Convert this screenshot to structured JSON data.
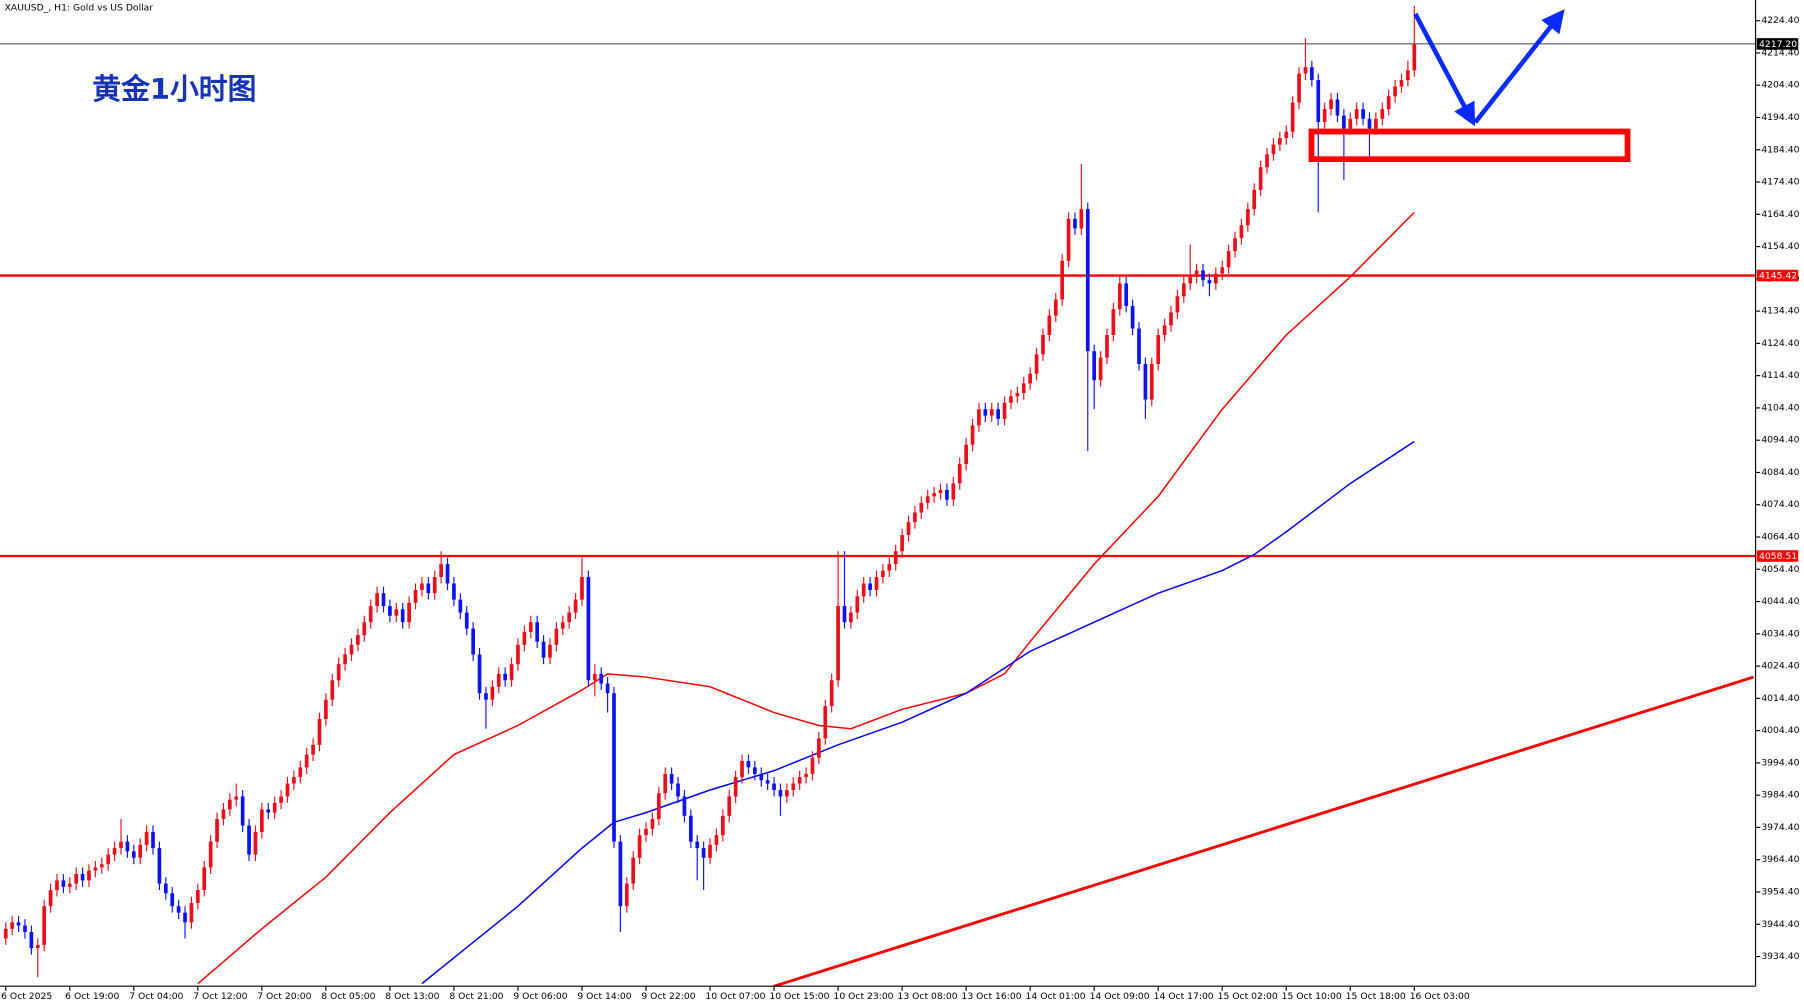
{
  "chart_data": {
    "type": "candlestick",
    "header": "XAUUSD_, H1:  Gold vs US Dollar",
    "annotation": "黄金1小时图",
    "up_color": "#e8101a",
    "down_color": "#0a14f0",
    "xlim": [
      -0.9,
      273.3
    ],
    "ylim": [
      3925.2,
      4230.8
    ],
    "xticks": [
      {
        "value": 0,
        "label": "6 Oct 2025"
      },
      {
        "value": 10,
        "label": "6 Oct 19:00"
      },
      {
        "value": 20,
        "label": "7 Oct 04:00"
      },
      {
        "value": 30,
        "label": "7 Oct 12:00"
      },
      {
        "value": 40,
        "label": "7 Oct 20:00"
      },
      {
        "value": 50,
        "label": "8 Oct 05:00"
      },
      {
        "value": 60,
        "label": "8 Oct 13:00"
      },
      {
        "value": 70,
        "label": "8 Oct 21:00"
      },
      {
        "value": 80,
        "label": "9 Oct 06:00"
      },
      {
        "value": 90,
        "label": "9 Oct 14:00"
      },
      {
        "value": 100,
        "label": "9 Oct 22:00"
      },
      {
        "value": 110,
        "label": "10 Oct 07:00"
      },
      {
        "value": 120,
        "label": "10 Oct 15:00"
      },
      {
        "value": 130,
        "label": "10 Oct 23:00"
      },
      {
        "value": 140,
        "label": "13 Oct 08:00"
      },
      {
        "value": 150,
        "label": "13 Oct 16:00"
      },
      {
        "value": 160,
        "label": "14 Oct 01:00"
      },
      {
        "value": 170,
        "label": "14 Oct 09:00"
      },
      {
        "value": 180,
        "label": "14 Oct 17:00"
      },
      {
        "value": 190,
        "label": "15 Oct 02:00"
      },
      {
        "value": 200,
        "label": "15 Oct 10:00"
      },
      {
        "value": 210,
        "label": "15 Oct 18:00"
      },
      {
        "value": 220,
        "label": "16 Oct 03:00"
      }
    ],
    "yticks": [
      {
        "value": 4224.4,
        "label": "4224.40"
      },
      {
        "value": 4214.4,
        "label": "4214.40"
      },
      {
        "value": 4204.4,
        "label": "4204.40"
      },
      {
        "value": 4194.4,
        "label": "4194.40"
      },
      {
        "value": 4184.4,
        "label": "4184.40"
      },
      {
        "value": 4174.4,
        "label": "4174.40"
      },
      {
        "value": 4164.4,
        "label": "4164.40"
      },
      {
        "value": 4154.4,
        "label": "4154.40"
      },
      {
        "value": 4144.4,
        "label": "4144.40"
      },
      {
        "value": 4134.4,
        "label": "4134.40"
      },
      {
        "value": 4124.4,
        "label": "4124.40"
      },
      {
        "value": 4114.4,
        "label": "4114.40"
      },
      {
        "value": 4104.4,
        "label": "4104.40"
      },
      {
        "value": 4094.4,
        "label": "4094.40"
      },
      {
        "value": 4084.4,
        "label": "4084.40"
      },
      {
        "value": 4074.4,
        "label": "4074.40"
      },
      {
        "value": 4064.4,
        "label": "4064.40"
      },
      {
        "value": 4054.4,
        "label": "4054.40"
      },
      {
        "value": 4044.4,
        "label": "4044.40"
      },
      {
        "value": 4034.4,
        "label": "4034.40"
      },
      {
        "value": 4024.4,
        "label": "4024.40"
      },
      {
        "value": 4014.4,
        "label": "4014.40"
      },
      {
        "value": 4004.4,
        "label": "4004.40"
      },
      {
        "value": 3994.4,
        "label": "3994.40"
      },
      {
        "value": 3984.4,
        "label": "3984.40"
      },
      {
        "value": 3974.4,
        "label": "3974.40"
      },
      {
        "value": 3964.4,
        "label": "3964.40"
      },
      {
        "value": 3954.4,
        "label": "3954.40"
      },
      {
        "value": 3944.4,
        "label": "3944.40"
      },
      {
        "value": 3934.4,
        "label": "3934.40"
      }
    ],
    "levels": [
      {
        "value": 4217.2,
        "label": "4217.20",
        "color": "#000000"
      },
      {
        "value": 4145.42,
        "label": "4145.42",
        "color": "#ff0000"
      },
      {
        "value": 4058.51,
        "label": "4058.51",
        "color": "#ff0000"
      }
    ],
    "open": [
      3940,
      3943,
      3945,
      3944,
      3942,
      3937,
      3938,
      3950,
      3955,
      3958,
      3956,
      3957,
      3960,
      3958,
      3961,
      3962,
      3963,
      3966,
      3968,
      3970,
      3967,
      3965,
      3969,
      3973,
      3968,
      3957,
      3954,
      3950,
      3948,
      3945,
      3951,
      3955,
      3962,
      3970,
      3977,
      3980,
      3983,
      3984,
      3975,
      3966,
      3973,
      3980,
      3979,
      3982,
      3984,
      3988,
      3990,
      3993,
      3997,
      4000,
      4008,
      4014,
      4020,
      4025,
      4028,
      4031,
      4034,
      4038,
      4043,
      4047,
      4043,
      4040,
      4042,
      4038,
      4044,
      4048,
      4050,
      4047,
      4052,
      4056,
      4050,
      4045,
      4041,
      4036,
      4028,
      4016,
      4014,
      4018,
      4022,
      4020,
      4025,
      4031,
      4035,
      4038,
      4032,
      4027,
      4031,
      4036,
      4038,
      4041,
      4045,
      4052,
      4020,
      4022,
      4019,
      4016,
      3970,
      3950,
      3957,
      3965,
      3972,
      3974,
      3977,
      3985,
      3991,
      3988,
      3984,
      3978,
      3970,
      3968,
      3965,
      3969,
      3972,
      3978,
      3984,
      3990,
      3995,
      3993,
      3991,
      3989,
      3988,
      3986,
      3984,
      3986,
      3988,
      3990,
      3991,
      3996,
      4002,
      4012,
      4020,
      4043,
      4038,
      4041,
      4046,
      4050,
      4048,
      4052,
      4054,
      4056,
      4060,
      4065,
      4069,
      4072,
      4075,
      4077,
      4078,
      4079,
      4076,
      4081,
      4087,
      4093,
      4099,
      4104,
      4102,
      4104,
      4101,
      4106,
      4108,
      4109,
      4112,
      4115,
      4121,
      4127,
      4133,
      4138,
      4150,
      4163,
      4160,
      4166,
      4122,
      4113,
      4120,
      4127,
      4135,
      4143,
      4136,
      4129,
      4118,
      4107,
      4118,
      4127,
      4130,
      4134,
      4139,
      4143,
      4145,
      4147,
      4144,
      4143,
      4146,
      4148,
      4153,
      4157,
      4161,
      4166,
      4172,
      4179,
      4183,
      4186,
      4188,
      4190,
      4199,
      4208,
      4210,
      4206,
      4193,
      4197,
      4200,
      4195,
      4191,
      4194,
      4197,
      4194,
      4191,
      4194,
      4197,
      4201,
      4204,
      4206,
      4209
    ],
    "high": [
      3945,
      3947,
      3947,
      3946,
      3944,
      3940,
      3952,
      3957,
      3960,
      3960,
      3959,
      3962,
      3962,
      3963,
      3964,
      3965,
      3968,
      3970,
      3977,
      3972,
      3969,
      3971,
      3975,
      3975,
      3970,
      3959,
      3956,
      3952,
      3950,
      3953,
      3957,
      3964,
      3972,
      3979,
      3982,
      3985,
      3988,
      3986,
      3977,
      3975,
      3982,
      3982,
      3984,
      3986,
      3990,
      3992,
      3995,
      3999,
      4002,
      4010,
      4016,
      4022,
      4027,
      4030,
      4033,
      4036,
      4040,
      4045,
      4049,
      4049,
      4045,
      4044,
      4044,
      4046,
      4050,
      4052,
      4052,
      4054,
      4060,
      4058,
      4052,
      4047,
      4043,
      4038,
      4030,
      4018,
      4020,
      4024,
      4024,
      4027,
      4033,
      4037,
      4040,
      4040,
      4034,
      4033,
      4038,
      4040,
      4043,
      4047,
      4058,
      4054,
      4025,
      4024,
      4021,
      4018,
      3972,
      3959,
      3967,
      3974,
      3976,
      3979,
      3987,
      3993,
      3993,
      3990,
      3986,
      3980,
      3972,
      3970,
      3971,
      3974,
      3980,
      3986,
      3992,
      3997,
      3997,
      3995,
      3993,
      3991,
      3990,
      3988,
      3988,
      3990,
      3992,
      3993,
      3998,
      4004,
      4014,
      4022,
      4060,
      4060,
      4043,
      4048,
      4052,
      4052,
      4054,
      4056,
      4058,
      4062,
      4067,
      4071,
      4074,
      4077,
      4079,
      4080,
      4081,
      4081,
      4083,
      4089,
      4095,
      4101,
      4106,
      4106,
      4106,
      4106,
      4108,
      4110,
      4111,
      4114,
      4117,
      4123,
      4129,
      4135,
      4140,
      4152,
      4165,
      4165,
      4180,
      4168,
      4124,
      4122,
      4129,
      4137,
      4145,
      4145,
      4138,
      4131,
      4120,
      4120,
      4129,
      4132,
      4136,
      4141,
      4145,
      4155,
      4149,
      4149,
      4146,
      4148,
      4150,
      4155,
      4159,
      4163,
      4168,
      4174,
      4181,
      4185,
      4188,
      4190,
      4192,
      4201,
      4210,
      4219,
      4212,
      4208,
      4199,
      4202,
      4202,
      4197,
      4196,
      4199,
      4199,
      4196,
      4196,
      4199,
      4203,
      4206,
      4208,
      4212,
      4229
    ],
    "low": [
      3938,
      3941,
      3942,
      3940,
      3935,
      3928,
      3936,
      3948,
      3953,
      3954,
      3954,
      3955,
      3956,
      3956,
      3959,
      3960,
      3961,
      3964,
      3966,
      3965,
      3963,
      3963,
      3967,
      3966,
      3955,
      3952,
      3948,
      3946,
      3940,
      3943,
      3949,
      3953,
      3960,
      3968,
      3975,
      3978,
      3981,
      3973,
      3964,
      3964,
      3971,
      3977,
      3977,
      3980,
      3982,
      3986,
      3988,
      3991,
      3995,
      3998,
      4006,
      4012,
      4018,
      4023,
      4026,
      4029,
      4032,
      4036,
      4041,
      4041,
      4038,
      4038,
      4036,
      4036,
      4042,
      4046,
      4045,
      4045,
      4050,
      4048,
      4043,
      4039,
      4034,
      4026,
      4014,
      4005,
      4012,
      4016,
      4018,
      4018,
      4023,
      4029,
      4033,
      4030,
      4025,
      4025,
      4029,
      4034,
      4036,
      4039,
      4043,
      4018,
      4015,
      4017,
      4010,
      3968,
      3942,
      3948,
      3955,
      3963,
      3970,
      3972,
      3975,
      3983,
      3986,
      3982,
      3976,
      3968,
      3958,
      3955,
      3963,
      3967,
      3970,
      3976,
      3982,
      3988,
      3991,
      3989,
      3987,
      3986,
      3984,
      3978,
      3982,
      3984,
      3986,
      3988,
      3989,
      3994,
      4000,
      4010,
      4018,
      4036,
      4036,
      4039,
      4044,
      4046,
      4046,
      4050,
      4052,
      4054,
      4058,
      4063,
      4067,
      4070,
      4073,
      4075,
      4076,
      4074,
      4074,
      4079,
      4085,
      4091,
      4097,
      4100,
      4100,
      4099,
      4099,
      4104,
      4106,
      4107,
      4110,
      4113,
      4119,
      4125,
      4131,
      4136,
      4148,
      4158,
      4158,
      4091,
      4104,
      4111,
      4118,
      4125,
      4133,
      4134,
      4127,
      4116,
      4101,
      4105,
      4116,
      4125,
      4128,
      4132,
      4137,
      4141,
      4143,
      4142,
      4139,
      4141,
      4144,
      4146,
      4151,
      4155,
      4159,
      4164,
      4170,
      4177,
      4181,
      4184,
      4186,
      4188,
      4197,
      4206,
      4204,
      4165,
      4191,
      4195,
      4193,
      4175,
      4189,
      4192,
      4192,
      4181,
      4189,
      4192,
      4195,
      4199,
      4202,
      4204,
      4207
    ],
    "close": [
      3943,
      3945,
      3944,
      3942,
      3937,
      3938,
      3950,
      3955,
      3958,
      3956,
      3957,
      3960,
      3958,
      3961,
      3962,
      3963,
      3966,
      3968,
      3970,
      3967,
      3965,
      3969,
      3973,
      3968,
      3957,
      3954,
      3950,
      3948,
      3945,
      3951,
      3955,
      3962,
      3970,
      3977,
      3980,
      3983,
      3984,
      3975,
      3966,
      3973,
      3980,
      3979,
      3982,
      3984,
      3988,
      3990,
      3993,
      3997,
      4000,
      4008,
      4014,
      4020,
      4025,
      4028,
      4031,
      4034,
      4038,
      4043,
      4047,
      4043,
      4040,
      4042,
      4038,
      4044,
      4048,
      4050,
      4047,
      4052,
      4056,
      4050,
      4045,
      4041,
      4036,
      4028,
      4016,
      4014,
      4018,
      4022,
      4020,
      4025,
      4031,
      4035,
      4038,
      4032,
      4027,
      4031,
      4036,
      4038,
      4041,
      4045,
      4052,
      4020,
      4022,
      4019,
      4016,
      3970,
      3950,
      3957,
      3965,
      3972,
      3974,
      3977,
      3985,
      3991,
      3988,
      3984,
      3978,
      3970,
      3968,
      3965,
      3969,
      3972,
      3978,
      3984,
      3990,
      3995,
      3993,
      3991,
      3989,
      3988,
      3986,
      3984,
      3986,
      3988,
      3990,
      3991,
      3996,
      4002,
      4012,
      4020,
      4043,
      4038,
      4041,
      4046,
      4050,
      4048,
      4052,
      4054,
      4056,
      4060,
      4065,
      4069,
      4072,
      4075,
      4077,
      4078,
      4079,
      4076,
      4081,
      4087,
      4093,
      4099,
      4104,
      4102,
      4104,
      4101,
      4106,
      4108,
      4109,
      4112,
      4115,
      4121,
      4127,
      4133,
      4138,
      4150,
      4163,
      4160,
      4166,
      4122,
      4113,
      4120,
      4127,
      4135,
      4143,
      4136,
      4129,
      4118,
      4107,
      4118,
      4127,
      4130,
      4134,
      4139,
      4143,
      4145,
      4147,
      4144,
      4143,
      4146,
      4148,
      4153,
      4157,
      4161,
      4166,
      4172,
      4179,
      4183,
      4186,
      4188,
      4190,
      4199,
      4208,
      4210,
      4206,
      4193,
      4197,
      4200,
      4195,
      4191,
      4194,
      4197,
      4194,
      4191,
      4194,
      4197,
      4201,
      4204,
      4206,
      4209,
      4217.2
    ],
    "moving_averages": [
      {
        "color": "#ff0000",
        "x": [
          30,
          40,
          50,
          60,
          70,
          80,
          90,
          94,
          100,
          110,
          120,
          127,
          132,
          140,
          150,
          156,
          160,
          170,
          180,
          190,
          200,
          210,
          220
        ],
        "values": [
          3926,
          3943,
          3959,
          3979,
          3997,
          4006,
          4017,
          4022,
          4021,
          4018,
          4010,
          4006,
          4005,
          4011,
          4016,
          4022,
          4032,
          4056,
          4077,
          4104,
          4127,
          4145,
          4165
        ]
      },
      {
        "color": "#0000ff",
        "x": [
          65,
          70,
          80,
          90,
          95,
          100,
          110,
          120,
          130,
          140,
          150,
          160,
          170,
          180,
          190,
          195,
          200,
          210,
          220
        ],
        "values": [
          3926,
          3934,
          3950,
          3968,
          3976,
          3979,
          3986,
          3992,
          4000,
          4007,
          4016,
          4029,
          4038,
          4047,
          4054,
          4059,
          4066,
          4081,
          4094
        ]
      }
    ],
    "trendline": {
      "color": "#ff0000",
      "x": [
        120,
        273
      ],
      "values": [
        3925.2,
        4021
      ]
    }
  }
}
